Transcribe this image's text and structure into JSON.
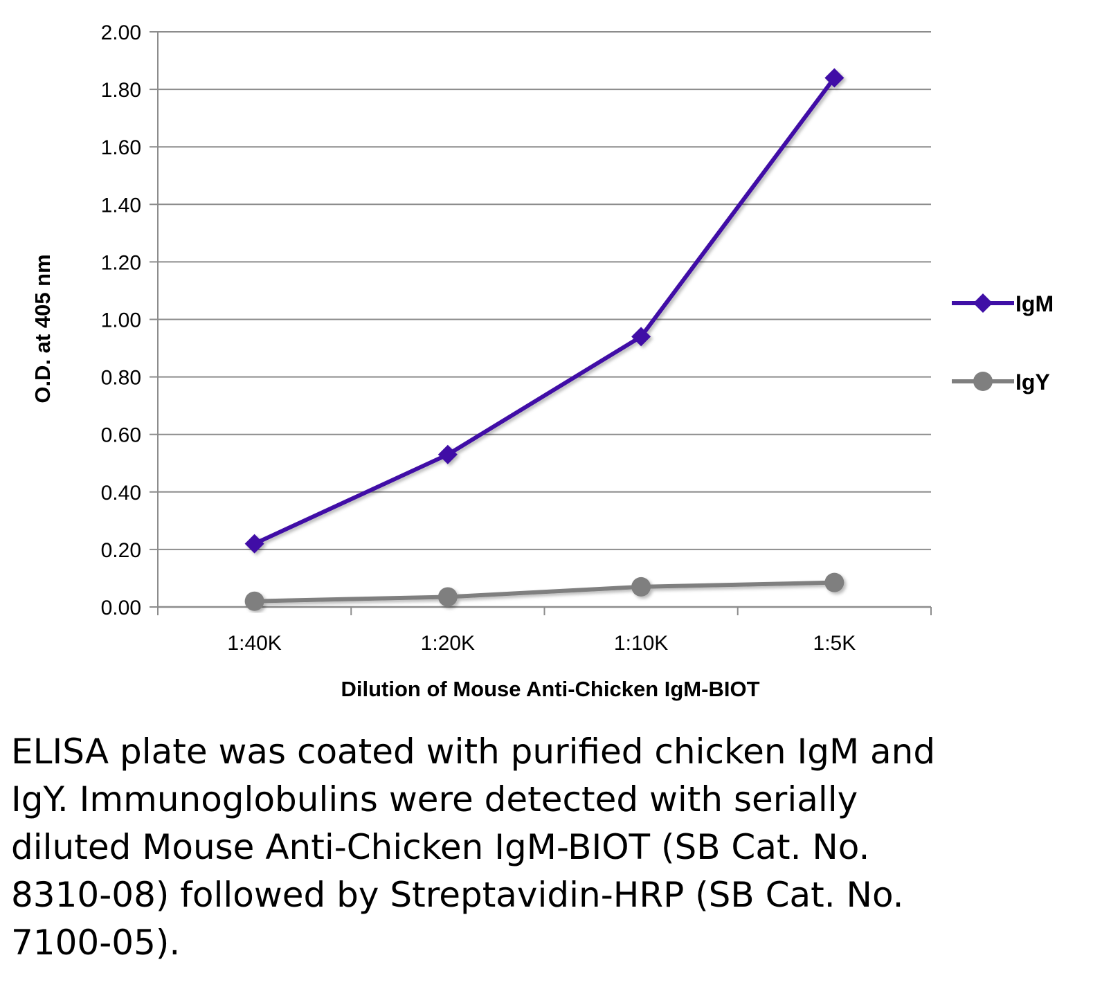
{
  "chart_data": {
    "type": "line",
    "categories": [
      "1:40K",
      "1:20K",
      "1:10K",
      "1:5K"
    ],
    "series": [
      {
        "name": "IgM",
        "values": [
          0.22,
          0.53,
          0.94,
          1.84
        ],
        "color": "#3F0FA6",
        "marker": "diamond"
      },
      {
        "name": "IgY",
        "values": [
          0.02,
          0.035,
          0.07,
          0.085
        ],
        "color": "#7F7F7F",
        "marker": "circle"
      }
    ],
    "title": "",
    "xlabel": "Dilution of Mouse Anti-Chicken IgM-BIOT",
    "ylabel": "O.D. at 405 nm",
    "ylim": [
      0,
      2.0
    ],
    "yticks": [
      "0.00",
      "0.20",
      "0.40",
      "0.60",
      "0.80",
      "1.00",
      "1.20",
      "1.40",
      "1.60",
      "1.80",
      "2.00"
    ],
    "grid": true,
    "legend_position": "right",
    "gridline_color": "#8C8C8C"
  },
  "caption": "ELISA plate was coated with purified chicken IgM and IgY.  Immunoglobulins were detected with serially diluted Mouse Anti-Chicken IgM-BIOT (SB Cat. No. 8310-08) followed by Streptavidin-HRP (SB Cat. No. 7100-05)."
}
